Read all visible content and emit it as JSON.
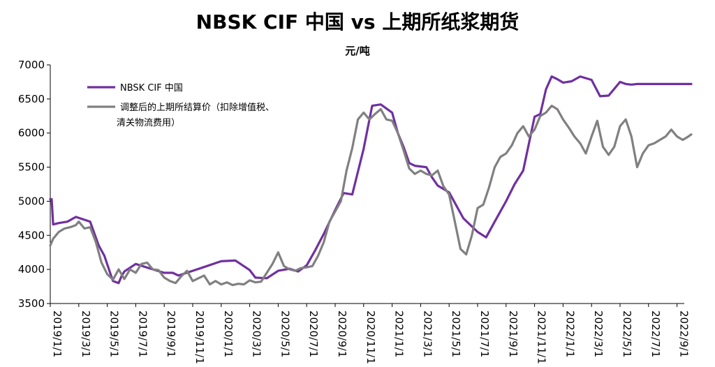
{
  "chart_data": {
    "type": "line",
    "title": "NBSK CIF 中国 vs 上期所纸浆期货",
    "ylabel": "元/吨",
    "xlabel": "",
    "ylim": [
      3500,
      7000
    ],
    "yticks": [
      "7000",
      "6500",
      "6000",
      "5500",
      "5000",
      "4500",
      "4000",
      "3500"
    ],
    "xticks": [
      "2019/1/1",
      "2019/3/1",
      "2019/5/1",
      "2019/7/1",
      "2019/9/1",
      "2019/11/1",
      "2020/1/1",
      "2020/3/1",
      "2020/5/1",
      "2020/7/1",
      "2020/9/1",
      "2020/11/1",
      "2021/1/1",
      "2021/3/1",
      "2021/5/1",
      "2021/7/1",
      "2021/9/1",
      "2021/11/1",
      "2022/1/1",
      "2022/3/1",
      "2022/5/1",
      "2022/7/1",
      "2022/9/1"
    ],
    "legend_position": "top-left",
    "series": [
      {
        "name": "NBSK CIF 中国",
        "color": "#7030a0",
        "x": [
          0,
          0.05,
          0.1,
          0.3,
          0.6,
          0.9,
          1.4,
          1.7,
          1.9,
          2.1,
          2.2,
          2.4,
          2.5,
          2.6,
          3.0,
          3.6,
          4.0,
          4.3,
          4.5,
          5.0,
          5.5,
          6.0,
          6.5,
          7.0,
          7.2,
          7.6,
          8.0,
          8.4,
          8.7,
          9.0,
          9.3,
          9.6,
          10.0,
          10.3,
          10.6,
          11.0,
          11.3,
          11.6,
          12.0,
          12.2,
          12.4,
          12.6,
          12.8,
          13.2,
          13.4,
          13.6,
          14.0,
          14.5,
          15.0,
          15.3,
          15.6,
          16.0,
          16.3,
          16.6,
          17.0,
          17.2,
          17.4,
          17.6,
          17.8,
          18.0,
          18.3,
          18.6,
          19.0,
          19.3,
          19.6,
          20.0,
          20.2,
          20.4,
          20.6,
          20.8,
          21.0,
          21.3,
          21.6,
          21.8,
          22.0,
          22.2,
          22.5
        ],
        "values": [
          5030,
          5030,
          4660,
          4680,
          4700,
          4770,
          4700,
          4350,
          4200,
          3950,
          3830,
          3800,
          3900,
          3970,
          4080,
          4000,
          3950,
          3950,
          3910,
          3980,
          4050,
          4120,
          4130,
          3990,
          3880,
          3870,
          3980,
          4010,
          3970,
          4060,
          4280,
          4520,
          4870,
          5120,
          5100,
          5770,
          6400,
          6420,
          6300,
          6000,
          5800,
          5560,
          5520,
          5500,
          5350,
          5230,
          5130,
          4750,
          4550,
          4470,
          4700,
          5000,
          5250,
          5450,
          6240,
          6280,
          6640,
          6830,
          6790,
          6740,
          6760,
          6830,
          6780,
          6540,
          6550,
          6750,
          6720,
          6710,
          6720,
          6720,
          6720,
          6720,
          6720,
          6720,
          6720,
          6720,
          6720
        ]
      },
      {
        "name": "调整后的上期所结算价（扣除增值税、清关物流费用）",
        "color": "#808080",
        "x": [
          0,
          0.1,
          0.3,
          0.5,
          0.7,
          0.9,
          1.0,
          1.2,
          1.4,
          1.6,
          1.8,
          2.0,
          2.2,
          2.4,
          2.6,
          2.8,
          3.0,
          3.2,
          3.4,
          3.6,
          3.8,
          4.0,
          4.2,
          4.4,
          4.6,
          4.8,
          5.0,
          5.2,
          5.4,
          5.6,
          5.8,
          6.0,
          6.2,
          6.4,
          6.6,
          6.8,
          7.0,
          7.2,
          7.4,
          7.6,
          7.8,
          8.0,
          8.2,
          8.4,
          8.6,
          8.8,
          9.0,
          9.2,
          9.4,
          9.6,
          9.8,
          10.0,
          10.2,
          10.4,
          10.6,
          10.8,
          11.0,
          11.2,
          11.4,
          11.6,
          11.8,
          12.0,
          12.2,
          12.4,
          12.6,
          12.8,
          13.0,
          13.2,
          13.4,
          13.6,
          13.8,
          14.0,
          14.2,
          14.4,
          14.6,
          14.8,
          15.0,
          15.2,
          15.4,
          15.6,
          15.8,
          16.0,
          16.2,
          16.4,
          16.6,
          16.8,
          17.0,
          17.2,
          17.4,
          17.6,
          17.8,
          18.0,
          18.2,
          18.4,
          18.6,
          18.8,
          19.0,
          19.2,
          19.4,
          19.6,
          19.8,
          20.0,
          20.2,
          20.4,
          20.6,
          20.8,
          21.0,
          21.2,
          21.4,
          21.6,
          21.8,
          22.0,
          22.2,
          22.4,
          22.5
        ],
        "values": [
          4350,
          4450,
          4550,
          4600,
          4620,
          4650,
          4700,
          4600,
          4620,
          4400,
          4100,
          3930,
          3850,
          4000,
          3860,
          4000,
          3950,
          4080,
          4100,
          4000,
          3990,
          3880,
          3830,
          3800,
          3900,
          3980,
          3830,
          3870,
          3910,
          3780,
          3830,
          3780,
          3810,
          3770,
          3790,
          3780,
          3840,
          3810,
          3820,
          3950,
          4080,
          4250,
          4050,
          4000,
          3980,
          4020,
          4030,
          4050,
          4200,
          4400,
          4700,
          4850,
          5000,
          5450,
          5780,
          6200,
          6300,
          6200,
          6280,
          6350,
          6200,
          6180,
          6000,
          5750,
          5480,
          5400,
          5450,
          5400,
          5380,
          5450,
          5220,
          5100,
          4700,
          4300,
          4220,
          4500,
          4900,
          4950,
          5200,
          5500,
          5650,
          5700,
          5820,
          6000,
          6100,
          5950,
          6050,
          6250,
          6300,
          6400,
          6350,
          6200,
          6080,
          5950,
          5850,
          5700,
          5950,
          6180,
          5800,
          5680,
          5800,
          6100,
          6200,
          5950,
          5500,
          5700,
          5820,
          5850,
          5900,
          5950,
          6050,
          5950,
          5900,
          5950,
          5980
        ]
      }
    ]
  }
}
